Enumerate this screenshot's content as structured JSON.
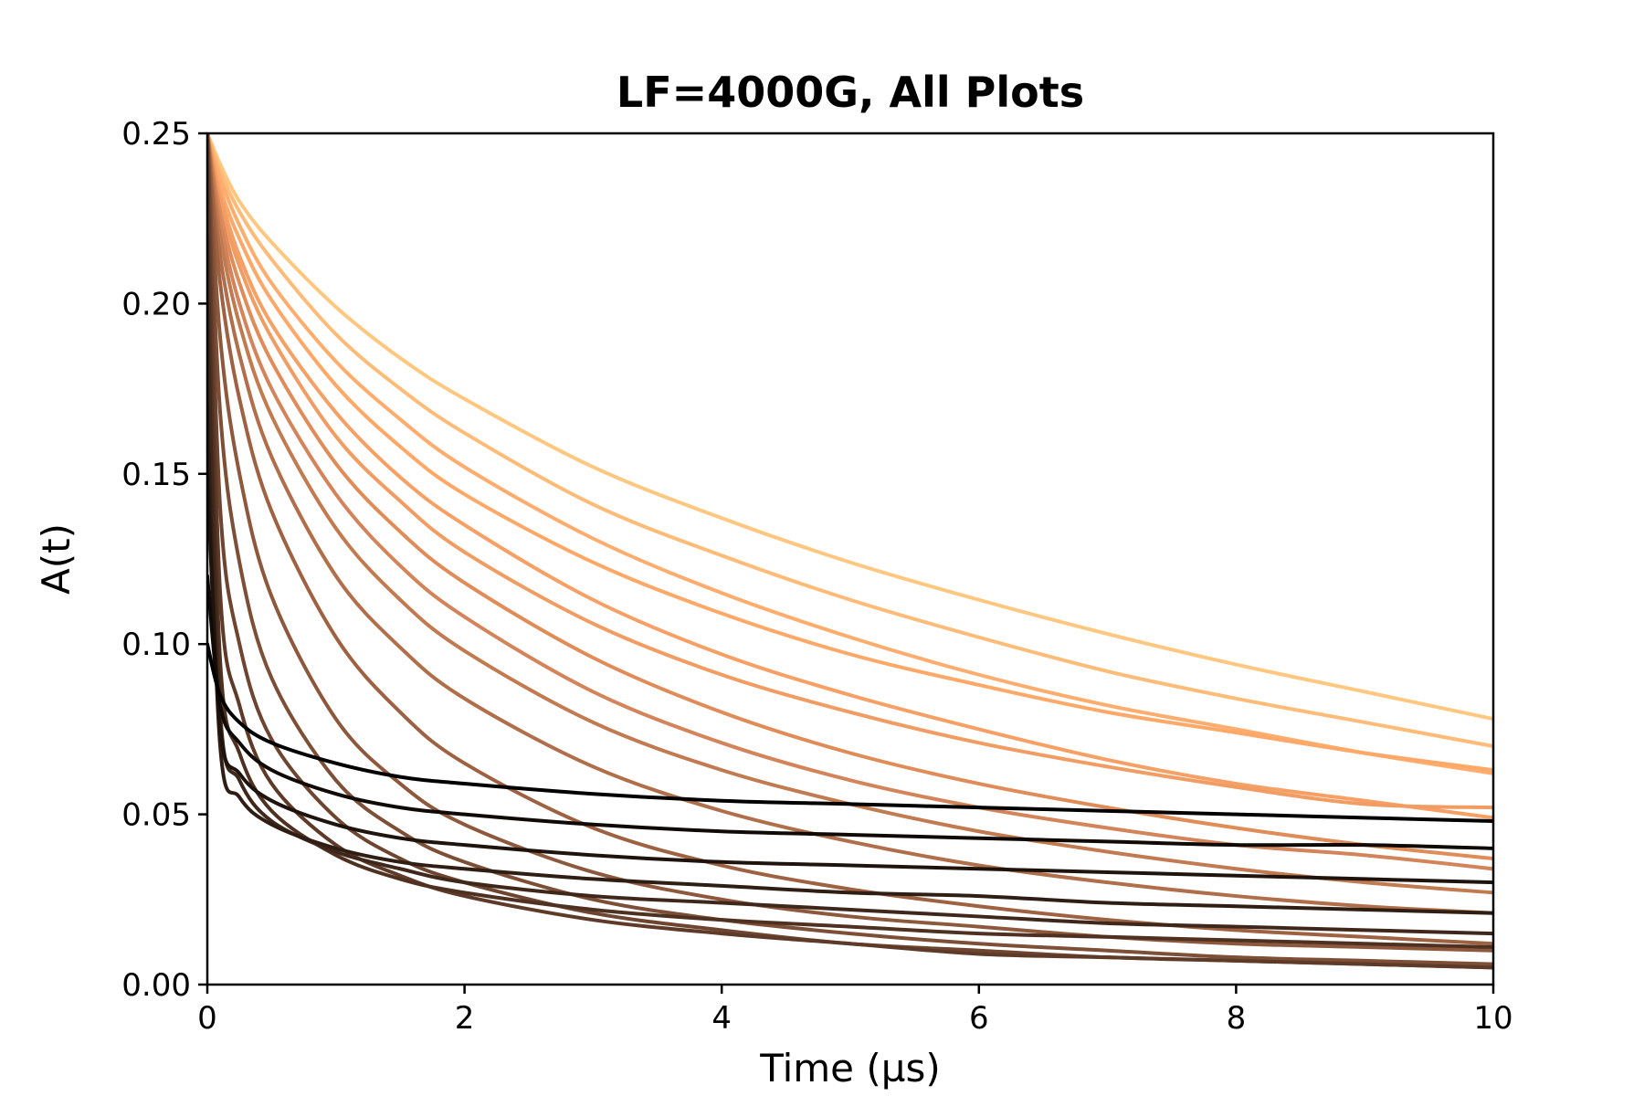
{
  "chart_data": {
    "type": "line",
    "title": "LF=4000G, All Plots",
    "xlabel": "Time (µs)",
    "ylabel": "A(t)",
    "xlim": [
      0,
      10
    ],
    "ylim": [
      0,
      0.25
    ],
    "xticks": [
      "0",
      "2",
      "4",
      "6",
      "8",
      "10"
    ],
    "xtick_values": [
      0,
      2,
      4,
      6,
      8,
      10
    ],
    "yticks": [
      "0.00",
      "0.05",
      "0.10",
      "0.15",
      "0.20",
      "0.25"
    ],
    "ytick_values": [
      0,
      0.05,
      0.1,
      0.15,
      0.2,
      0.25
    ],
    "grid": false,
    "colormap": "copper",
    "x": [
      0,
      0.1,
      0.25,
      0.5,
      1,
      1.5,
      2,
      3,
      4,
      5,
      6,
      7,
      8,
      9,
      10
    ],
    "series": [
      {
        "color": "#ffc77f",
        "values": [
          0.25,
          0.241,
          0.23,
          0.218,
          0.199,
          0.184,
          0.172,
          0.152,
          0.137,
          0.124,
          0.113,
          0.103,
          0.094,
          0.086,
          0.078
        ]
      },
      {
        "color": "#ffbb78",
        "values": [
          0.25,
          0.239,
          0.227,
          0.213,
          0.191,
          0.175,
          0.162,
          0.141,
          0.126,
          0.113,
          0.102,
          0.092,
          0.084,
          0.077,
          0.07
        ]
      },
      {
        "color": "#ffad6e",
        "values": [
          0.25,
          0.237,
          0.223,
          0.206,
          0.183,
          0.166,
          0.152,
          0.131,
          0.115,
          0.102,
          0.091,
          0.082,
          0.075,
          0.068,
          0.062
        ]
      },
      {
        "color": "#ffa868",
        "values": [
          0.25,
          0.234,
          0.219,
          0.201,
          0.176,
          0.158,
          0.144,
          0.124,
          0.109,
          0.097,
          0.088,
          0.08,
          0.074,
          0.068,
          0.063
        ]
      },
      {
        "color": "#f7a065",
        "values": [
          0.25,
          0.232,
          0.214,
          0.194,
          0.168,
          0.149,
          0.135,
          0.113,
          0.097,
          0.085,
          0.075,
          0.066,
          0.059,
          0.054,
          0.049
        ]
      },
      {
        "color": "#f19c63",
        "values": [
          0.25,
          0.23,
          0.211,
          0.19,
          0.161,
          0.142,
          0.127,
          0.106,
          0.091,
          0.08,
          0.071,
          0.064,
          0.058,
          0.053,
          0.052
        ]
      },
      {
        "color": "#e08c58",
        "values": [
          0.25,
          0.227,
          0.206,
          0.183,
          0.153,
          0.133,
          0.118,
          0.096,
          0.08,
          0.068,
          0.059,
          0.052,
          0.046,
          0.041,
          0.037
        ]
      },
      {
        "color": "#d3845a",
        "values": [
          0.25,
          0.224,
          0.2,
          0.175,
          0.144,
          0.123,
          0.108,
          0.086,
          0.071,
          0.06,
          0.052,
          0.046,
          0.041,
          0.038,
          0.034
        ]
      },
      {
        "color": "#c27a50",
        "values": [
          0.25,
          0.22,
          0.194,
          0.167,
          0.134,
          0.113,
          0.098,
          0.077,
          0.063,
          0.053,
          0.045,
          0.039,
          0.034,
          0.03,
          0.027
        ]
      },
      {
        "color": "#b06f4a",
        "values": [
          0.25,
          0.214,
          0.185,
          0.155,
          0.12,
          0.099,
          0.084,
          0.064,
          0.051,
          0.042,
          0.035,
          0.03,
          0.026,
          0.023,
          0.021
        ]
      },
      {
        "color": "#9e6242",
        "values": [
          0.25,
          0.206,
          0.172,
          0.139,
          0.102,
          0.08,
          0.065,
          0.046,
          0.035,
          0.028,
          0.023,
          0.019,
          0.016,
          0.014,
          0.012
        ]
      },
      {
        "color": "#8d583c",
        "values": [
          0.25,
          0.19,
          0.15,
          0.114,
          0.078,
          0.059,
          0.047,
          0.033,
          0.025,
          0.02,
          0.017,
          0.014,
          0.012,
          0.011,
          0.01
        ]
      },
      {
        "color": "#7d4f37",
        "values": [
          0.25,
          0.168,
          0.124,
          0.09,
          0.06,
          0.045,
          0.036,
          0.025,
          0.019,
          0.015,
          0.012,
          0.01,
          0.008,
          0.007,
          0.006
        ]
      },
      {
        "color": "#6e4530",
        "values": [
          0.25,
          0.14,
          0.1,
          0.072,
          0.049,
          0.037,
          0.03,
          0.021,
          0.016,
          0.012,
          0.01,
          0.008,
          0.007,
          0.006,
          0.005
        ]
      },
      {
        "color": "#5e3b29",
        "values": [
          0.24,
          0.115,
          0.082,
          0.059,
          0.041,
          0.032,
          0.026,
          0.019,
          0.015,
          0.012,
          0.009,
          0.008,
          0.007,
          0.006,
          0.005
        ]
      },
      {
        "color": "#4f3122",
        "values": [
          0.22,
          0.095,
          0.068,
          0.051,
          0.038,
          0.031,
          0.027,
          0.022,
          0.019,
          0.017,
          0.015,
          0.014,
          0.013,
          0.012,
          0.011
        ]
      },
      {
        "color": "#3f281b",
        "values": [
          0.2,
          0.08,
          0.06,
          0.048,
          0.039,
          0.034,
          0.03,
          0.026,
          0.024,
          0.022,
          0.02,
          0.018,
          0.017,
          0.016,
          0.015
        ]
      },
      {
        "color": "#2f1e14",
        "values": [
          0.17,
          0.07,
          0.055,
          0.047,
          0.04,
          0.036,
          0.034,
          0.031,
          0.029,
          0.027,
          0.026,
          0.024,
          0.023,
          0.022,
          0.021
        ]
      },
      {
        "color": "#1f140d",
        "values": [
          0.15,
          0.075,
          0.062,
          0.054,
          0.047,
          0.043,
          0.041,
          0.038,
          0.036,
          0.035,
          0.034,
          0.033,
          0.032,
          0.031,
          0.03
        ]
      },
      {
        "color": "#100a07",
        "values": [
          0.12,
          0.082,
          0.071,
          0.063,
          0.056,
          0.052,
          0.05,
          0.047,
          0.045,
          0.044,
          0.043,
          0.042,
          0.041,
          0.041,
          0.04
        ]
      },
      {
        "color": "#000000",
        "values": [
          0.1,
          0.085,
          0.077,
          0.071,
          0.065,
          0.061,
          0.059,
          0.056,
          0.054,
          0.053,
          0.052,
          0.051,
          0.05,
          0.049,
          0.048
        ]
      }
    ]
  }
}
